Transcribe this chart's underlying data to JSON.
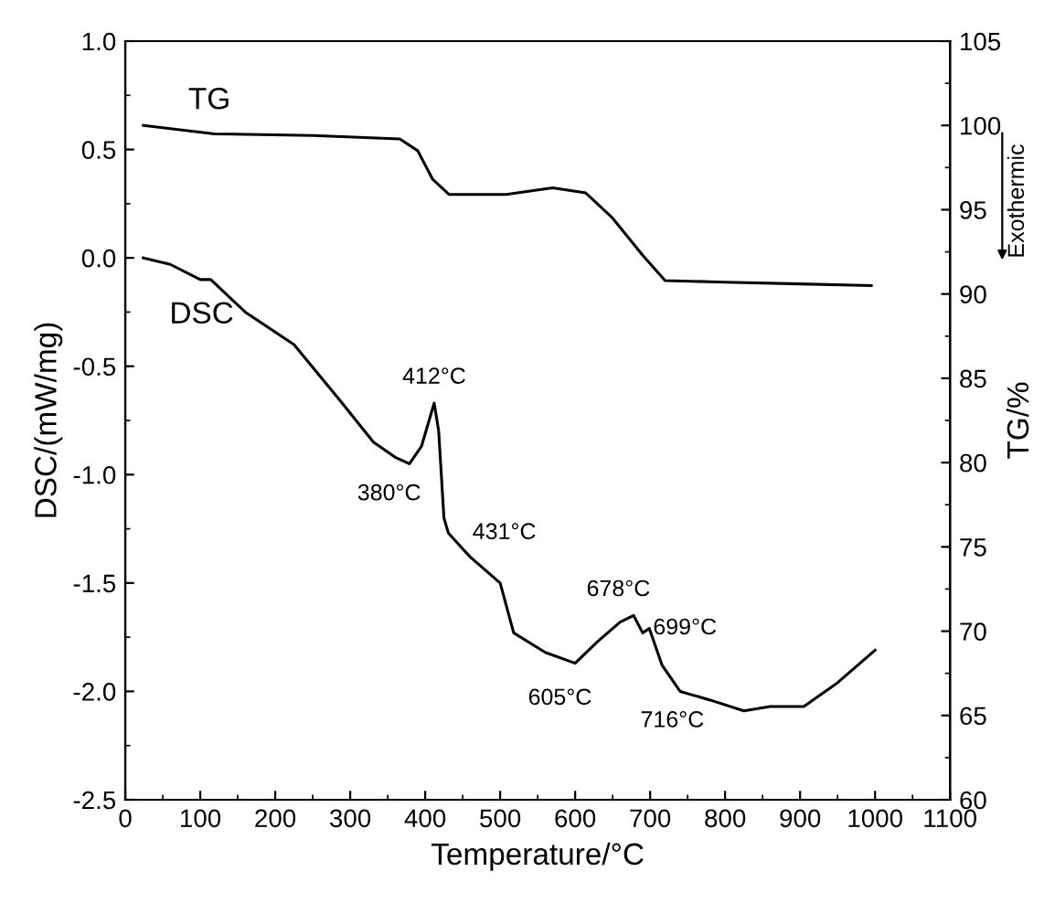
{
  "chart_data": {
    "type": "line",
    "xlabel": "Temperature/°C",
    "ylabel": "DSC/(mW/mg)",
    "y2label": "TG/%",
    "xlim": [
      0,
      1100
    ],
    "xticks": [
      0,
      100,
      200,
      300,
      400,
      500,
      600,
      700,
      800,
      900,
      1000,
      1100
    ],
    "ylim": [
      -2.5,
      1.0
    ],
    "yticks": [
      {
        "value": -2.5,
        "label": "-2.5"
      },
      {
        "value": -2.0,
        "label": "-2.0"
      },
      {
        "value": -1.5,
        "label": "-1.5"
      },
      {
        "value": -1.0,
        "label": "-1.0"
      },
      {
        "value": -0.5,
        "label": "-0.5"
      },
      {
        "value": 0.0,
        "label": "0.0"
      },
      {
        "value": 0.5,
        "label": "0.5"
      },
      {
        "value": 1.0,
        "label": "1.0"
      }
    ],
    "y2lim": [
      60,
      105
    ],
    "y2ticks": [
      60,
      65,
      70,
      75,
      80,
      85,
      90,
      95,
      100,
      105
    ],
    "grid": false,
    "legend": false,
    "series": [
      {
        "name": "TG",
        "axis": "y2",
        "color": "#000000",
        "x": [
          24,
          119,
          250,
          366,
          390,
          410,
          432,
          508,
          570,
          614,
          650,
          690,
          720,
          800,
          900,
          995
        ],
        "values": [
          100.0,
          99.5,
          99.4,
          99.2,
          98.5,
          96.8,
          95.9,
          95.9,
          96.3,
          96.0,
          94.5,
          92.3,
          90.8,
          90.7,
          90.6,
          90.5
        ]
      },
      {
        "name": "DSC",
        "color": "#000000",
        "x": [
          24,
          60,
          100,
          114,
          160,
          225,
          287,
          331,
          360,
          379,
          395,
          412,
          418,
          425,
          431,
          460,
          500,
          518,
          560,
          600,
          630,
          660,
          678,
          690,
          699,
          716,
          740,
          780,
          825,
          860,
          905,
          950,
          1000
        ],
        "values": [
          0.0,
          -0.03,
          -0.1,
          -0.1,
          -0.25,
          -0.4,
          -0.66,
          -0.85,
          -0.92,
          -0.95,
          -0.87,
          -0.67,
          -0.8,
          -1.2,
          -1.27,
          -1.38,
          -1.5,
          -1.73,
          -1.82,
          -1.87,
          -1.77,
          -1.68,
          -1.65,
          -1.73,
          -1.71,
          -1.88,
          -2.0,
          -2.04,
          -2.09,
          -2.07,
          -2.07,
          -1.96,
          -1.81
        ]
      }
    ],
    "annotations": [
      {
        "text": "412°C",
        "x": 412,
        "y": -0.67
      },
      {
        "text": "380°C",
        "x": 379,
        "y": -0.95
      },
      {
        "text": "431°C",
        "x": 431,
        "y": -1.27
      },
      {
        "text": "678°C",
        "x": 678,
        "y": -1.65
      },
      {
        "text": "699°C",
        "x": 699,
        "y": -1.71
      },
      {
        "text": "605°C",
        "x": 600,
        "y": -1.87
      },
      {
        "text": "716°C",
        "x": 716,
        "y": -1.88
      },
      "Exothermic"
    ]
  }
}
